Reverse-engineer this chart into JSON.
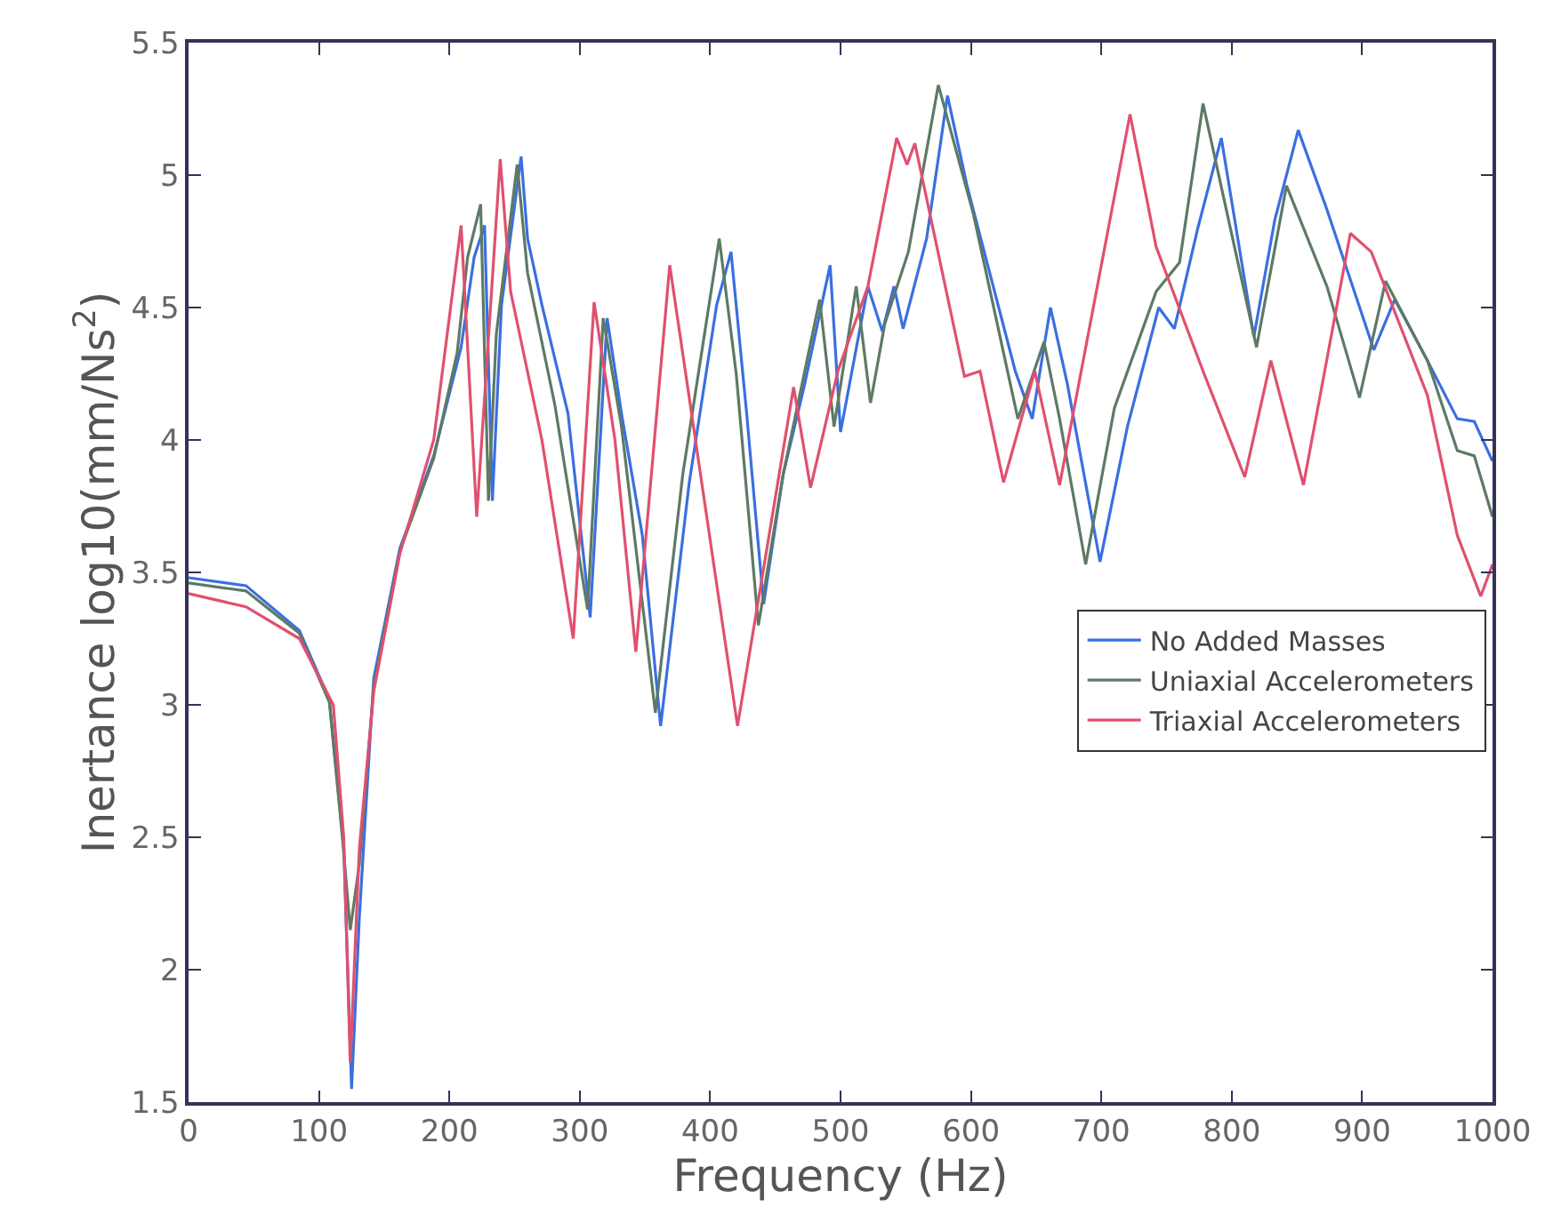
{
  "chart_data": {
    "type": "line",
    "xlabel": "Frequency (Hz)",
    "ylabel": "Inertance log10(mm/Ns$^{2}$)",
    "xlim": [
      0,
      1000
    ],
    "xticks": [
      0,
      100,
      200,
      300,
      400,
      500,
      600,
      700,
      800,
      900,
      1000
    ],
    "ylim": [
      1.5,
      5.5
    ],
    "yticks": [
      1.5,
      2,
      2.5,
      3,
      3.5,
      4,
      4.5,
      5,
      5.5
    ],
    "legend": "right",
    "marker": "none",
    "line_style": "solid",
    "series": [
      {
        "name": "No Added Masses",
        "color": "#3b6fe0",
        "x": [
          0,
          44,
          85,
          108,
          119,
          125,
          131,
          142,
          162,
          188,
          209,
          219,
          227,
          233,
          240,
          255,
          260,
          271,
          291,
          308,
          321,
          332,
          348,
          362,
          384,
          405,
          416,
          428,
          441,
          456,
          472,
          492,
          500,
          521,
          532,
          541,
          548,
          566,
          582,
          597,
          634,
          647,
          661,
          674,
          699,
          720,
          744,
          756,
          774,
          792,
          817,
          833,
          851,
          873,
          909,
          925,
          950,
          973,
          986,
          1000
        ],
        "values": [
          3.48,
          3.45,
          3.28,
          3.02,
          2.46,
          1.55,
          2.2,
          3.1,
          3.59,
          3.94,
          4.35,
          4.69,
          4.81,
          3.77,
          4.51,
          5.07,
          4.76,
          4.51,
          4.1,
          3.33,
          4.46,
          4.1,
          3.64,
          2.92,
          3.84,
          4.51,
          4.71,
          4.1,
          3.38,
          3.87,
          4.2,
          4.66,
          4.03,
          4.58,
          4.41,
          4.58,
          4.42,
          4.76,
          5.3,
          4.96,
          4.26,
          4.08,
          4.5,
          4.21,
          3.54,
          4.05,
          4.5,
          4.42,
          4.8,
          5.14,
          4.39,
          4.83,
          5.17,
          4.87,
          4.34,
          4.53,
          4.3,
          4.08,
          4.07,
          3.92
        ]
      },
      {
        "name": "Uniaxial Accelerometers",
        "color": "#5d7a64",
        "x": [
          0,
          44,
          85,
          108,
          118,
          124,
          131,
          142,
          162,
          188,
          206,
          214,
          224,
          230,
          236,
          252,
          260,
          281,
          306,
          318,
          332,
          358,
          379,
          407,
          420,
          437,
          456,
          484,
          495,
          512,
          523,
          534,
          552,
          575,
          602,
          636,
          656,
          668,
          688,
          710,
          742,
          760,
          778,
          819,
          842,
          873,
          898,
          918,
          950,
          973,
          986,
          1000
        ],
        "values": [
          3.46,
          3.43,
          3.27,
          3.01,
          2.5,
          2.15,
          2.4,
          3.07,
          3.58,
          3.93,
          4.33,
          4.69,
          4.89,
          3.77,
          4.4,
          5.04,
          4.63,
          4.13,
          3.36,
          4.46,
          4.05,
          2.97,
          3.87,
          4.76,
          4.25,
          3.3,
          3.87,
          4.53,
          4.05,
          4.58,
          4.14,
          4.44,
          4.71,
          5.34,
          4.85,
          4.08,
          4.37,
          4.08,
          3.53,
          4.12,
          4.56,
          4.67,
          5.27,
          4.35,
          4.96,
          4.58,
          4.16,
          4.6,
          4.3,
          3.96,
          3.94,
          3.71
        ]
      },
      {
        "name": "Triaxial Accelerometers",
        "color": "#e0506e",
        "x": [
          0,
          44,
          85,
          111,
          119,
          124,
          131,
          142,
          162,
          188,
          209,
          221,
          239,
          247,
          271,
          295,
          311,
          327,
          343,
          369,
          421,
          464,
          477,
          498,
          521,
          543,
          551,
          557,
          595,
          607,
          625,
          649,
          668,
          722,
          742,
          778,
          810,
          830,
          855,
          891,
          907,
          950,
          973,
          991,
          1000
        ],
        "values": [
          3.42,
          3.37,
          3.25,
          3.0,
          2.5,
          1.65,
          2.46,
          3.05,
          3.57,
          4.0,
          4.81,
          3.71,
          5.06,
          4.56,
          4.0,
          3.25,
          4.52,
          4.0,
          3.2,
          4.66,
          2.92,
          4.2,
          3.82,
          4.26,
          4.58,
          5.14,
          5.04,
          5.12,
          4.24,
          4.26,
          3.84,
          4.26,
          3.83,
          5.23,
          4.73,
          4.26,
          3.86,
          4.3,
          3.83,
          4.78,
          4.71,
          4.17,
          3.64,
          3.41,
          3.53
        ]
      }
    ]
  }
}
